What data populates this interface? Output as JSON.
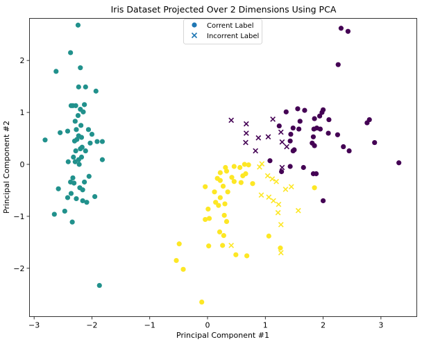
{
  "chart_data": {
    "type": "scatter",
    "title": "Iris Dataset Projected Over 2 Dimensions Using PCA",
    "xlabel": "Principal Component #1",
    "ylabel": "Principal Component #2",
    "xlim": [
      -3.08,
      3.62
    ],
    "ylim": [
      -2.93,
      2.81
    ],
    "xticks": [
      -3,
      -2,
      -1,
      0,
      1,
      2,
      3
    ],
    "yticks": [
      -2,
      -1,
      0,
      1,
      2
    ],
    "grid": false,
    "legend_position": "top-center",
    "legend": [
      {
        "label": "Corrent Label",
        "marker": "circle"
      },
      {
        "label": "Incorrent Label",
        "marker": "x"
      }
    ],
    "series": [
      {
        "class_color": "#21918c",
        "correct": [
          [
            -2.24,
            2.68
          ],
          [
            -2.37,
            2.15
          ],
          [
            -2.62,
            1.79
          ],
          [
            -2.2,
            1.86
          ],
          [
            -2.23,
            1.49
          ],
          [
            -2.11,
            1.49
          ],
          [
            -1.93,
            1.41
          ],
          [
            -2.36,
            1.13
          ],
          [
            -2.33,
            1.13
          ],
          [
            -2.28,
            1.13
          ],
          [
            -2.13,
            1.15
          ],
          [
            -2.2,
            1.06
          ],
          [
            -2.15,
            1.01
          ],
          [
            -2.24,
            0.94
          ],
          [
            -2.29,
            0.83
          ],
          [
            -2.19,
            0.75
          ],
          [
            -2.27,
            0.67
          ],
          [
            -2.06,
            0.67
          ],
          [
            -2.42,
            0.64
          ],
          [
            -2.55,
            0.61
          ],
          [
            -2.0,
            0.58
          ],
          [
            -2.23,
            0.55
          ],
          [
            -2.18,
            0.52
          ],
          [
            -2.26,
            0.48
          ],
          [
            -2.3,
            0.45
          ],
          [
            -2.81,
            0.47
          ],
          [
            -1.91,
            0.44
          ],
          [
            -1.82,
            0.44
          ],
          [
            -2.03,
            0.41
          ],
          [
            -2.17,
            0.33
          ],
          [
            -2.2,
            0.3
          ],
          [
            -2.28,
            0.26
          ],
          [
            -2.11,
            0.26
          ],
          [
            -2.32,
            0.14
          ],
          [
            -2.18,
            0.14
          ],
          [
            -2.23,
            0.09
          ],
          [
            -1.82,
            0.09
          ],
          [
            -2.41,
            0.05
          ],
          [
            -2.29,
            0.05
          ],
          [
            -2.22,
            0.0
          ],
          [
            -2.05,
            -0.23
          ],
          [
            -2.33,
            -0.26
          ],
          [
            -2.37,
            -0.34
          ],
          [
            -2.31,
            -0.36
          ],
          [
            -2.13,
            -0.34
          ],
          [
            -2.58,
            -0.47
          ],
          [
            -2.21,
            -0.45
          ],
          [
            -2.16,
            -0.49
          ],
          [
            -2.36,
            -0.56
          ],
          [
            -2.42,
            -0.64
          ],
          [
            -1.95,
            -0.62
          ],
          [
            -2.27,
            -0.66
          ],
          [
            -2.16,
            -0.7
          ],
          [
            -2.09,
            -0.73
          ],
          [
            -2.47,
            -0.9
          ],
          [
            -2.65,
            -0.96
          ],
          [
            -2.34,
            -1.11
          ],
          [
            -1.87,
            -2.33
          ]
        ],
        "incorrect": []
      },
      {
        "class_color": "#440154",
        "correct": [
          [
            2.31,
            2.62
          ],
          [
            2.43,
            2.56
          ],
          [
            2.26,
            1.92
          ],
          [
            1.56,
            1.07
          ],
          [
            1.68,
            1.04
          ],
          [
            2.0,
            1.05
          ],
          [
            1.98,
            1.0
          ],
          [
            1.36,
            1.01
          ],
          [
            1.94,
            0.93
          ],
          [
            1.85,
            0.88
          ],
          [
            2.1,
            0.86
          ],
          [
            2.8,
            0.86
          ],
          [
            2.76,
            0.8
          ],
          [
            1.6,
            0.83
          ],
          [
            1.89,
            0.7
          ],
          [
            1.84,
            0.68
          ],
          [
            1.58,
            0.68
          ],
          [
            1.95,
            0.68
          ],
          [
            2.09,
            0.6
          ],
          [
            1.48,
            0.7
          ],
          [
            1.24,
            0.74
          ],
          [
            1.44,
            0.58
          ],
          [
            2.25,
            0.57
          ],
          [
            1.83,
            0.53
          ],
          [
            1.43,
            0.45
          ],
          [
            2.89,
            0.42
          ],
          [
            1.81,
            0.41
          ],
          [
            1.85,
            0.36
          ],
          [
            2.35,
            0.34
          ],
          [
            1.5,
            0.28
          ],
          [
            1.48,
            0.26
          ],
          [
            2.45,
            0.26
          ],
          [
            1.08,
            0.07
          ],
          [
            3.31,
            0.03
          ],
          [
            1.43,
            -0.04
          ],
          [
            1.66,
            -0.06
          ],
          [
            1.28,
            -0.14
          ],
          [
            1.83,
            -0.18
          ],
          [
            1.88,
            -0.18
          ],
          [
            2.0,
            -0.7
          ]
        ],
        "incorrect": [
          [
            0.41,
            0.85
          ],
          [
            0.67,
            0.78
          ],
          [
            1.13,
            0.87
          ],
          [
            0.67,
            0.6
          ],
          [
            0.88,
            0.51
          ],
          [
            1.05,
            0.53
          ],
          [
            1.27,
            0.62
          ],
          [
            1.29,
            0.43
          ],
          [
            0.66,
            0.42
          ],
          [
            1.37,
            0.34
          ],
          [
            0.83,
            0.26
          ],
          [
            1.29,
            -0.06
          ]
        ]
      },
      {
        "class_color": "#fde725",
        "correct": [
          [
            0.64,
            0.0
          ],
          [
            0.56,
            -0.06
          ],
          [
            0.46,
            -0.04
          ],
          [
            0.71,
            -0.01
          ],
          [
            0.31,
            -0.06
          ],
          [
            0.33,
            -0.13
          ],
          [
            0.22,
            -0.16
          ],
          [
            0.66,
            -0.18
          ],
          [
            0.61,
            -0.22
          ],
          [
            0.42,
            -0.25
          ],
          [
            0.17,
            -0.27
          ],
          [
            0.46,
            -0.33
          ],
          [
            0.22,
            -0.31
          ],
          [
            0.58,
            -0.35
          ],
          [
            0.78,
            -0.37
          ],
          [
            -0.04,
            -0.43
          ],
          [
            0.27,
            -0.42
          ],
          [
            0.12,
            -0.53
          ],
          [
            0.35,
            -0.53
          ],
          [
            0.22,
            -0.64
          ],
          [
            0.14,
            -0.73
          ],
          [
            0.3,
            -0.76
          ],
          [
            0.19,
            -0.79
          ],
          [
            0.01,
            -0.86
          ],
          [
            0.29,
            -0.98
          ],
          [
            -0.04,
            -1.06
          ],
          [
            0.03,
            -1.04
          ],
          [
            0.33,
            -1.1
          ],
          [
            0.21,
            -1.3
          ],
          [
            0.28,
            -1.37
          ],
          [
            -0.49,
            -1.53
          ],
          [
            0.02,
            -1.57
          ],
          [
            0.26,
            -1.56
          ],
          [
            0.49,
            -1.74
          ],
          [
            0.68,
            -1.76
          ],
          [
            -0.54,
            -1.85
          ],
          [
            -0.42,
            -2.02
          ],
          [
            -0.1,
            -2.65
          ],
          [
            1.06,
            -1.38
          ],
          [
            1.26,
            -1.61
          ],
          [
            1.85,
            -0.45
          ]
        ],
        "incorrect": [
          [
            0.94,
            0.01
          ],
          [
            0.9,
            -0.05
          ],
          [
            1.04,
            -0.22
          ],
          [
            1.12,
            -0.28
          ],
          [
            1.19,
            -0.33
          ],
          [
            1.45,
            -0.43
          ],
          [
            1.35,
            -0.48
          ],
          [
            0.93,
            -0.59
          ],
          [
            1.06,
            -0.63
          ],
          [
            1.14,
            -0.7
          ],
          [
            1.23,
            -0.77
          ],
          [
            1.57,
            -0.89
          ],
          [
            1.22,
            -0.93
          ],
          [
            1.27,
            -1.16
          ],
          [
            0.41,
            -1.56
          ],
          [
            1.27,
            -1.7
          ]
        ]
      }
    ]
  }
}
